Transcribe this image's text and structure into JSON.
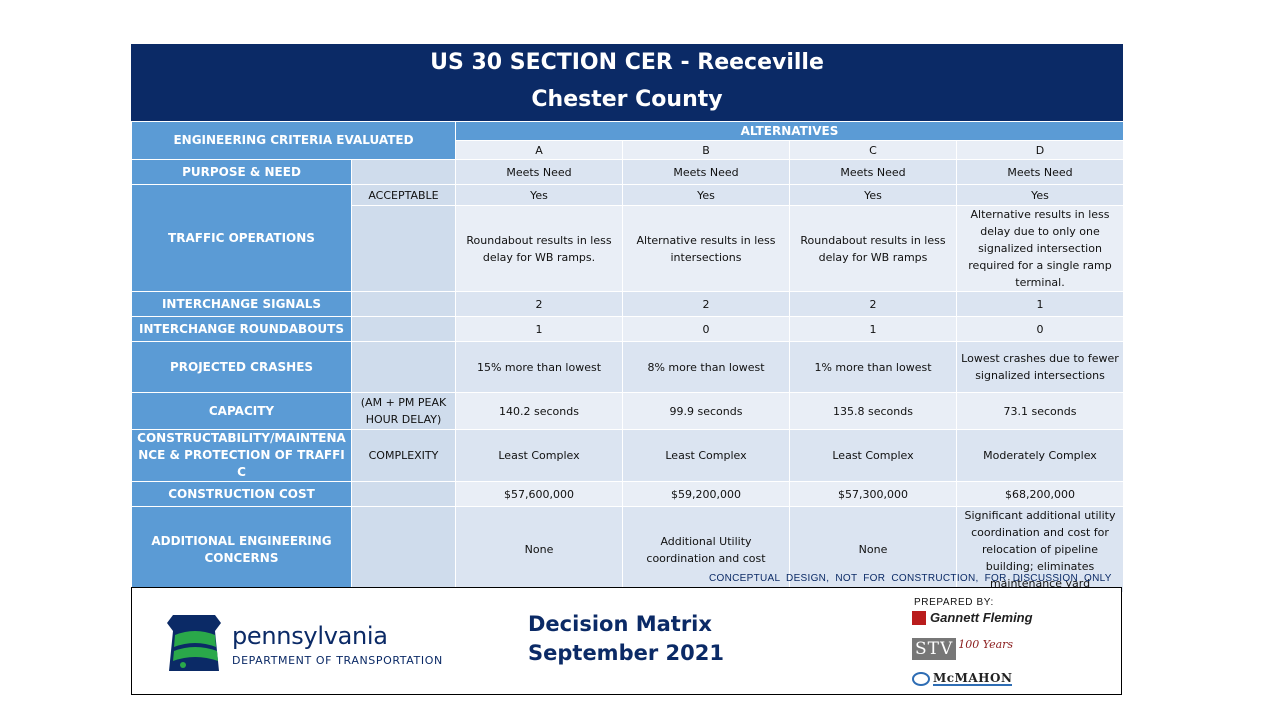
{
  "header": {
    "title_line1": "US 30 SECTION CER - Reeceville",
    "title_line2": "Chester County"
  },
  "table": {
    "criteria_header": "ENGINEERING CRITERIA EVALUATED",
    "alternatives_header": "ALTERNATIVES",
    "alternatives": [
      "A",
      "B",
      "C",
      "D"
    ],
    "rows": {
      "purpose": {
        "label": "PURPOSE & NEED",
        "sub": "",
        "values": [
          "Meets Need",
          "Meets Need",
          "Meets Need",
          "Meets Need"
        ]
      },
      "traffic_acceptable": {
        "sub": "ACCEPTABLE",
        "values": [
          "Yes",
          "Yes",
          "Yes",
          "Yes"
        ]
      },
      "traffic": {
        "label": "TRAFFIC OPERATIONS",
        "sub": "",
        "values": [
          "Roundabout results in less delay for WB ramps.",
          "Alternative results in less intersections",
          "Roundabout results in less delay for WB ramps",
          "Alternative results in less delay due to only one signalized intersection required for a single ramp terminal."
        ]
      },
      "signals": {
        "label": "INTERCHANGE SIGNALS",
        "sub": "",
        "values": [
          "2",
          "2",
          "2",
          "1"
        ]
      },
      "roundabouts": {
        "label": "INTERCHANGE ROUNDABOUTS",
        "sub": "",
        "values": [
          "1",
          "0",
          "1",
          "0"
        ]
      },
      "crashes": {
        "label": "PROJECTED CRASHES",
        "sub": "",
        "values": [
          "15% more than lowest",
          "8% more than lowest",
          "1% more than lowest",
          "Lowest crashes due to fewer signalized intersections"
        ]
      },
      "capacity": {
        "label": "CAPACITY",
        "sub": "(AM + PM PEAK HOUR DELAY)",
        "values": [
          "140.2 seconds",
          "99.9 seconds",
          "135.8 seconds",
          "73.1 seconds"
        ]
      },
      "constructability": {
        "label": "CONSTRUCTABILITY/MAINTENANCE & PROTECTION OF TRAFFIC",
        "sub": "COMPLEXITY",
        "values": [
          "Least Complex",
          "Least Complex",
          "Least Complex",
          "Moderately Complex"
        ]
      },
      "cost": {
        "label": "CONSTRUCTION COST",
        "sub": "",
        "values": [
          "$57,600,000",
          "$59,200,000",
          "$57,300,000",
          "$68,200,000"
        ]
      },
      "concerns": {
        "label": "ADDITIONAL ENGINEERING CONCERNS",
        "sub": "",
        "values": [
          "None",
          "Additional Utility coordination and cost",
          "None",
          "Significant additional utility coordination and cost for relocation of pipeline building; eliminates maintenance yard"
        ]
      }
    }
  },
  "disclaimer": "CONCEPTUAL DESIGN, NOT FOR CONSTRUCTION, FOR DISCUSSION ONLY",
  "footer": {
    "agency_name": "pennsylvania",
    "agency_dept": "DEPARTMENT OF TRANSPORTATION",
    "doc_title": "Decision Matrix",
    "doc_date": "September 2021",
    "prepared_by": "PREPARED BY:",
    "firm1": "Gannett Fleming",
    "firm2": "STV",
    "firm2_years": "100 Years",
    "firm3": "McMAHON"
  },
  "colors": {
    "navy": "#0b2a66",
    "header_blue": "#5b9bd5",
    "cell_light": "#e9eef6",
    "cell_mid": "#cfdcec"
  }
}
